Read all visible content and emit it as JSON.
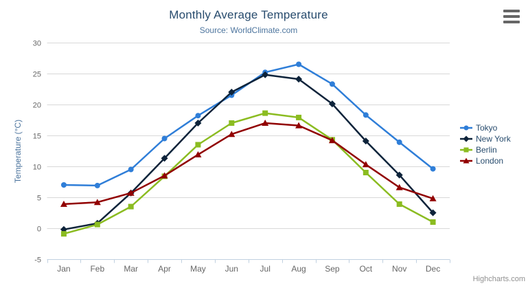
{
  "chart": {
    "credits": "Highcharts.com",
    "menu_icon": "hamburger-icon"
  },
  "chart_data": {
    "type": "line",
    "title": "Monthly Average Temperature",
    "subtitle": "Source: WorldClimate.com",
    "categories": [
      "Jan",
      "Feb",
      "Mar",
      "Apr",
      "May",
      "Jun",
      "Jul",
      "Aug",
      "Sep",
      "Oct",
      "Nov",
      "Dec"
    ],
    "xlabel": "",
    "ylabel": "Temperature (°C)",
    "ylim": [
      -5,
      30
    ],
    "tick_interval": 5,
    "grid": true,
    "legend_position": "right-middle-vertical",
    "series": [
      {
        "name": "Tokyo",
        "color": "#2f7ed8",
        "marker": "circle",
        "values": [
          7.0,
          6.9,
          9.5,
          14.5,
          18.2,
          21.5,
          25.2,
          26.5,
          23.3,
          18.3,
          13.9,
          9.6
        ]
      },
      {
        "name": "New York",
        "color": "#0d233a",
        "marker": "diamond",
        "values": [
          -0.2,
          0.8,
          5.7,
          11.3,
          17.0,
          22.0,
          24.8,
          24.1,
          20.1,
          14.1,
          8.6,
          2.5
        ]
      },
      {
        "name": "Berlin",
        "color": "#8bbc21",
        "marker": "square",
        "values": [
          -0.9,
          0.6,
          3.5,
          8.4,
          13.5,
          17.0,
          18.6,
          17.9,
          14.3,
          9.0,
          3.9,
          1.0
        ]
      },
      {
        "name": "London",
        "color": "#910000",
        "marker": "triangle",
        "values": [
          3.9,
          4.2,
          5.7,
          8.5,
          11.9,
          15.2,
          17.0,
          16.6,
          14.2,
          10.3,
          6.6,
          4.8
        ]
      }
    ]
  },
  "colors": {
    "title": "#274b6d",
    "subtitle": "#4d759e",
    "axis_label": "#666666",
    "axis_line": "#c0d0e0",
    "grid_line": "#d8d8d8",
    "legend_text": "#274b6d",
    "credits": "#909090"
  }
}
